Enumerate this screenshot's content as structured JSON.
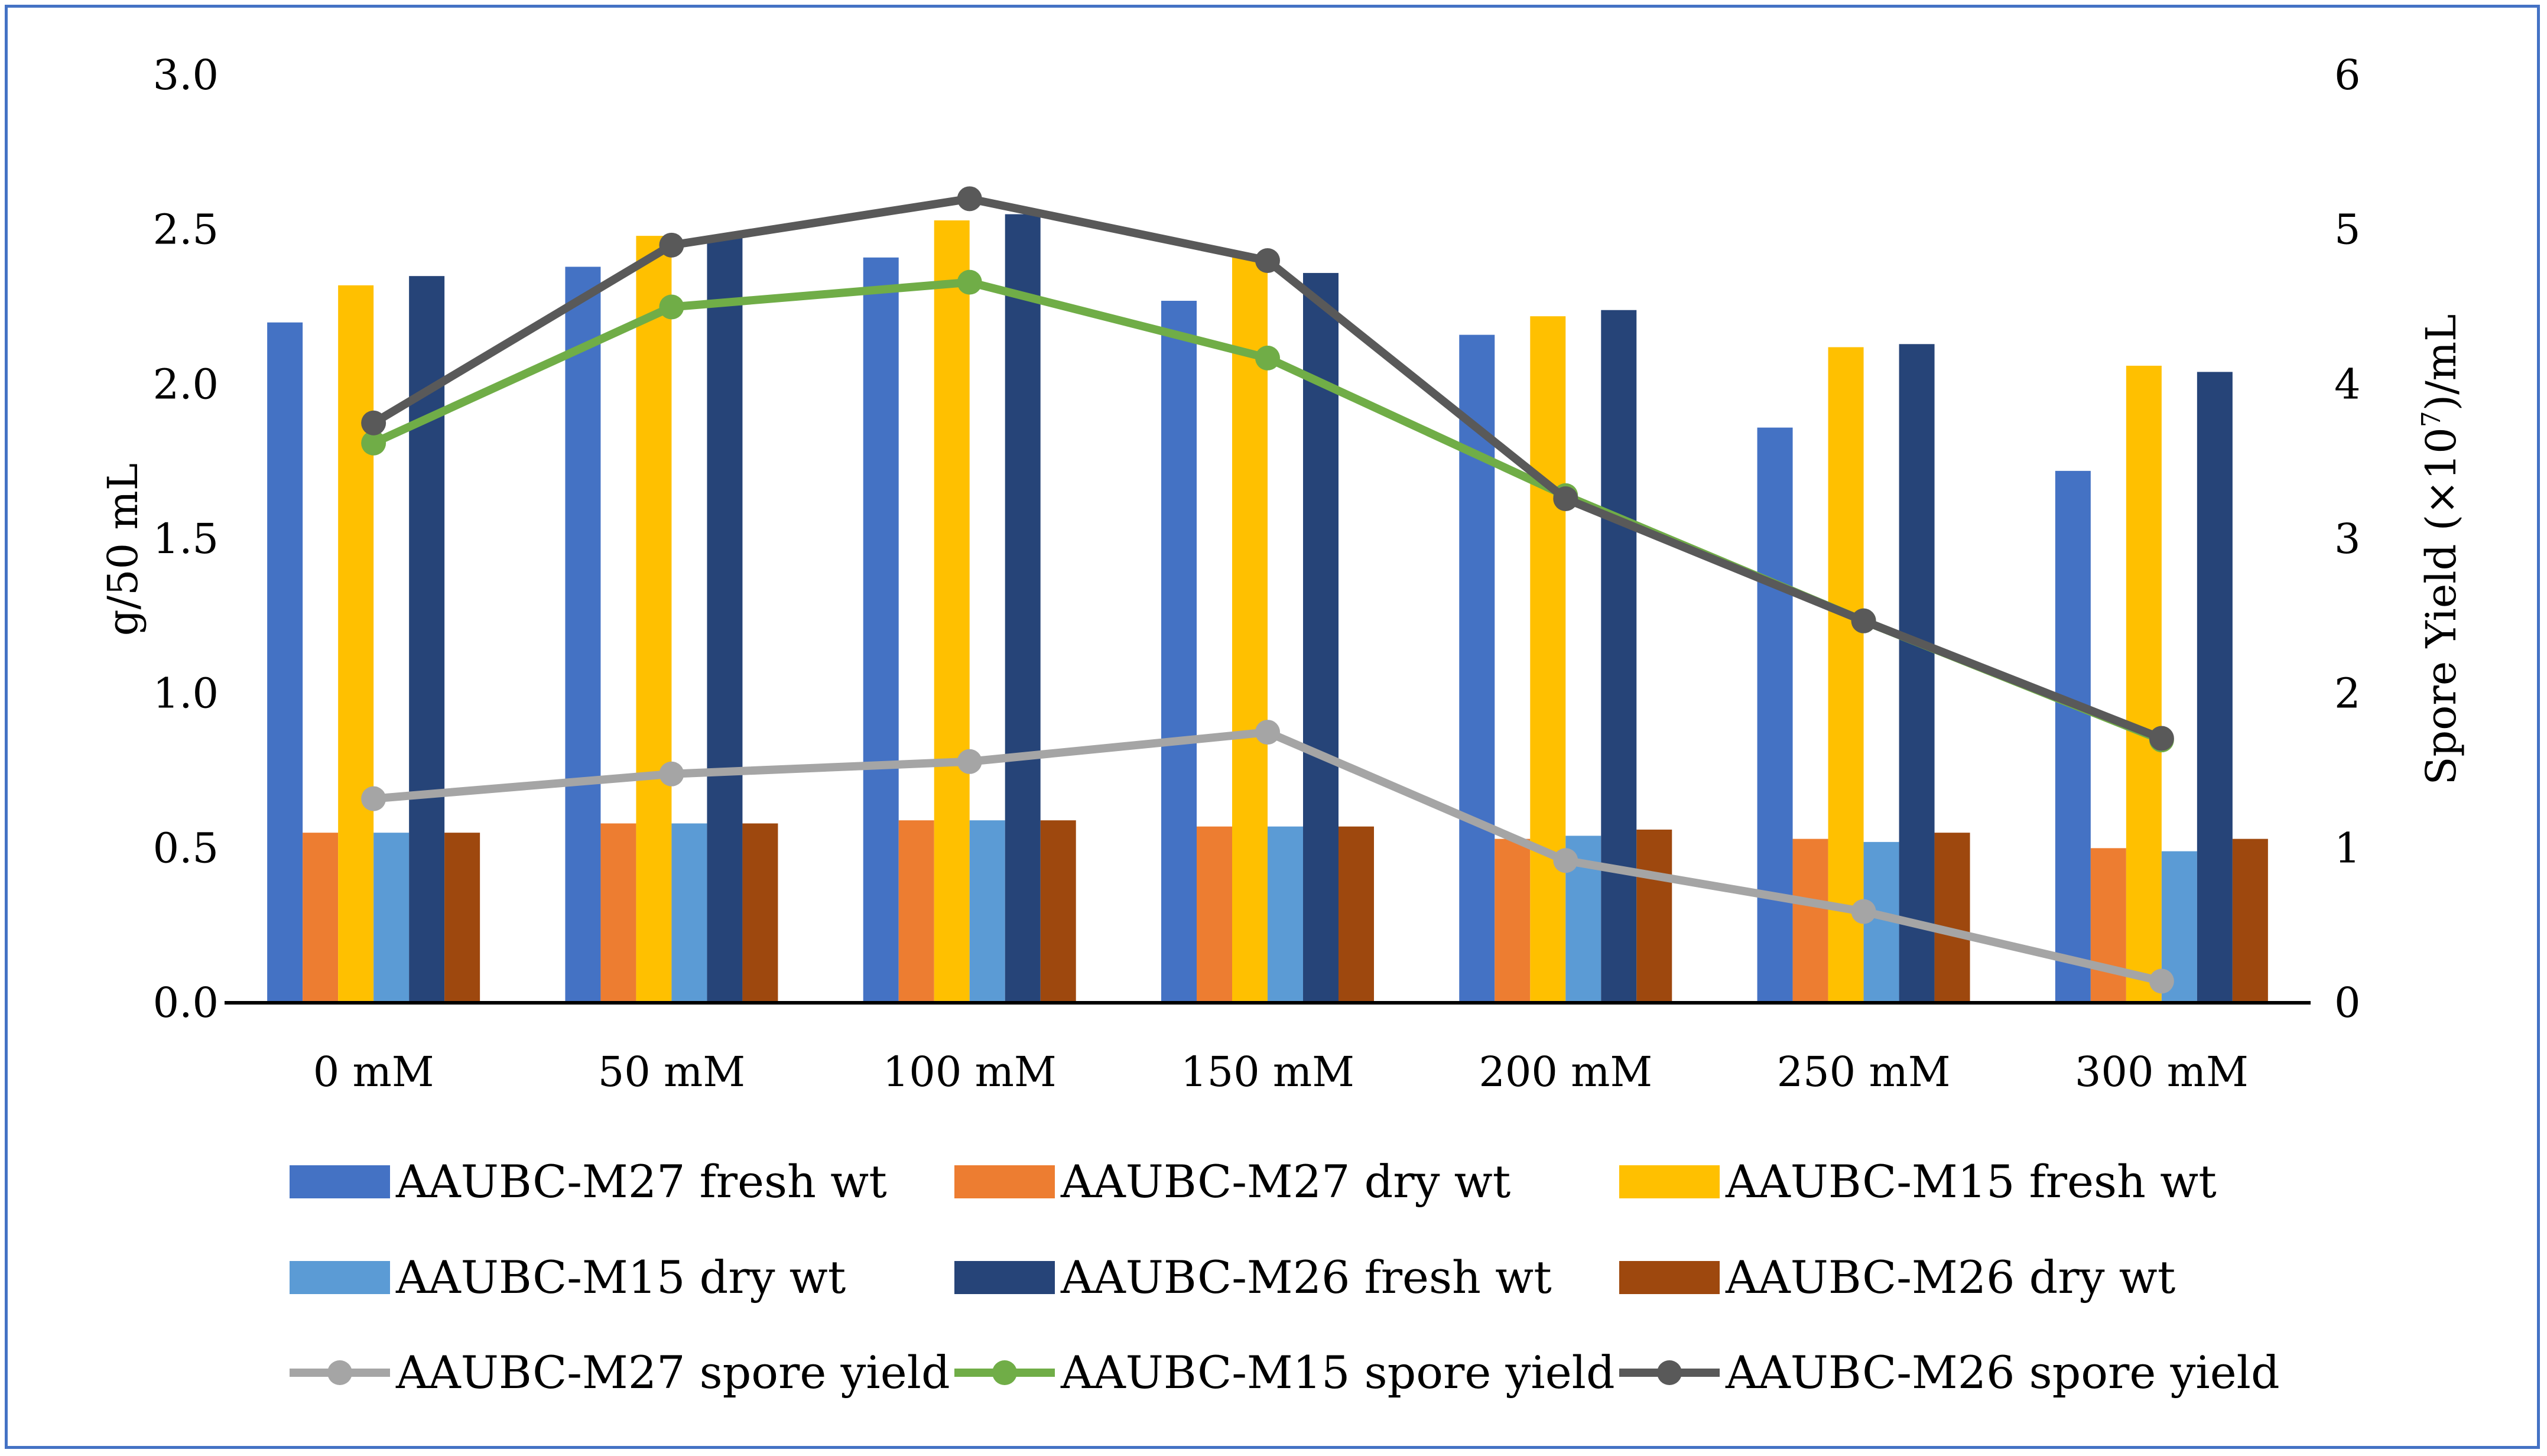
{
  "chart_data": {
    "type": "bar",
    "categories": [
      "0 mM",
      "50 mM",
      "100 mM",
      "150 mM",
      "200 mM",
      "250 mM",
      "300 mM"
    ],
    "title": "",
    "xlabel": "",
    "ylabel": "g/50 mL",
    "y2label_main": "Spore Yield (×10",
    "y2label_sup": "7",
    "y2label_tail": ")/mL",
    "ylim": [
      0,
      3.0
    ],
    "y2lim": [
      0,
      6
    ],
    "yticks": [
      "0.0",
      "0.5",
      "1.0",
      "1.5",
      "2.0",
      "2.5",
      "3.0"
    ],
    "y2ticks": [
      "0",
      "1",
      "2",
      "3",
      "4",
      "5",
      "6"
    ],
    "grid": false,
    "legend_position": "bottom",
    "bar_series": [
      {
        "name": "AAUBC-M27 fresh wt",
        "color": "#4472c4",
        "values": [
          2.2,
          2.38,
          2.41,
          2.27,
          2.16,
          1.86,
          1.72
        ]
      },
      {
        "name": "AAUBC-M27 dry wt",
        "color": "#ed7d31",
        "values": [
          0.55,
          0.58,
          0.59,
          0.57,
          0.53,
          0.53,
          0.5
        ]
      },
      {
        "name": "AAUBC-M15 fresh wt",
        "color": "#ffc000",
        "values": [
          2.32,
          2.48,
          2.53,
          2.41,
          2.22,
          2.12,
          2.06
        ]
      },
      {
        "name": "AAUBC-M15 dry wt",
        "color": "#5b9bd5",
        "values": [
          0.55,
          0.58,
          0.59,
          0.57,
          0.54,
          0.52,
          0.49
        ]
      },
      {
        "name": "AAUBC-M26 fresh wt",
        "color": "#264478",
        "values": [
          2.35,
          2.48,
          2.55,
          2.36,
          2.24,
          2.13,
          2.04
        ]
      },
      {
        "name": "AAUBC-M26 dry wt",
        "color": "#9e480e",
        "values": [
          0.55,
          0.58,
          0.59,
          0.57,
          0.56,
          0.55,
          0.53
        ]
      }
    ],
    "line_series": [
      {
        "name": "AAUBC-M27 spore yield",
        "color": "#a5a5a5",
        "axis": "right",
        "values": [
          1.32,
          1.48,
          1.56,
          1.75,
          0.92,
          0.59,
          0.14
        ]
      },
      {
        "name": "AAUBC-M15 spore yield",
        "color": "#70ad47",
        "axis": "right",
        "values": [
          3.62,
          4.5,
          4.66,
          4.17,
          3.28,
          2.47,
          1.7
        ]
      },
      {
        "name": "AAUBC-M26 spore yield",
        "color": "#595959",
        "axis": "right",
        "values": [
          3.75,
          4.9,
          5.2,
          4.8,
          3.26,
          2.47,
          1.71
        ]
      }
    ]
  }
}
